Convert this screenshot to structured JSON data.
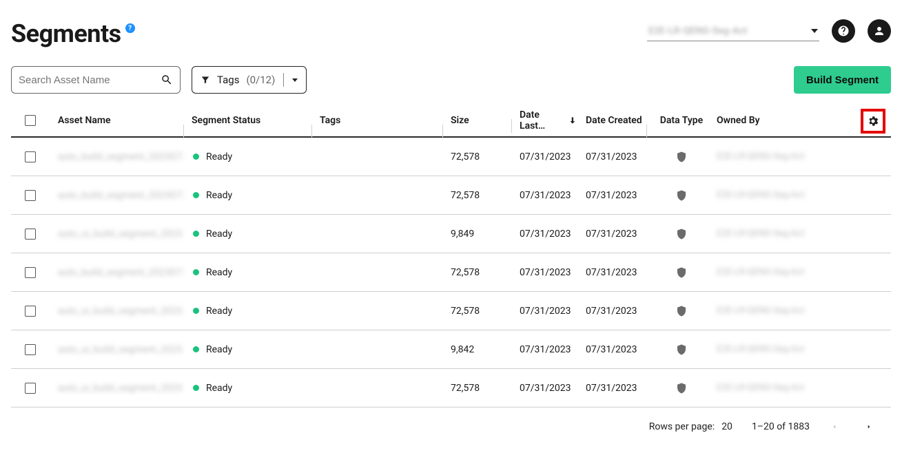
{
  "page_title": "Segments",
  "account_selector": {
    "label": "E2E-LR-QENG-Seg-Act"
  },
  "search": {
    "placeholder": "Search Asset Name"
  },
  "tags_filter": {
    "label": "Tags",
    "count": "(0/12)"
  },
  "build_button": "Build Segment",
  "columns": {
    "asset_name": "Asset Name",
    "segment_status": "Segment Status",
    "tags": "Tags",
    "size": "Size",
    "date_last": "Date Last…",
    "date_created": "Date Created",
    "data_type": "Data Type",
    "owned_by": "Owned By"
  },
  "rows": [
    {
      "name": "auto_build_segment_20230731…",
      "status": "Ready",
      "size": "72,578",
      "last": "07/31/2023",
      "created": "07/31/2023",
      "owner": "E2E-LR-QENG-Seg-Act"
    },
    {
      "name": "auto_build_segment_20230731…",
      "status": "Ready",
      "size": "72,578",
      "last": "07/31/2023",
      "created": "07/31/2023",
      "owner": "E2E-LR-QENG-Seg-Act"
    },
    {
      "name": "auto_ui_build_segment_2023…",
      "status": "Ready",
      "size": "9,849",
      "last": "07/31/2023",
      "created": "07/31/2023",
      "owner": "E2E-LR-QENG-Seg-Act"
    },
    {
      "name": "auto_build_segment_20230731…",
      "status": "Ready",
      "size": "72,578",
      "last": "07/31/2023",
      "created": "07/31/2023",
      "owner": "E2E-LR-QENG-Seg-Act"
    },
    {
      "name": "auto_ui_build_segment_2023…",
      "status": "Ready",
      "size": "72,578",
      "last": "07/31/2023",
      "created": "07/31/2023",
      "owner": "E2E-LR-QENG-Seg-Act"
    },
    {
      "name": "auto_ui_build_segment_2023…",
      "status": "Ready",
      "size": "9,842",
      "last": "07/31/2023",
      "created": "07/31/2023",
      "owner": "E2E-LR-QENG-Seg-Act"
    },
    {
      "name": "auto_ui_build_segment_2023…",
      "status": "Ready",
      "size": "72,578",
      "last": "07/31/2023",
      "created": "07/31/2023",
      "owner": "E2E-LR-QENG-Seg-Act"
    }
  ],
  "pagination": {
    "rows_per_page_label": "Rows per page:",
    "rows_per_page_value": "20",
    "range": "1–20 of 1883"
  },
  "colors": {
    "accent": "#2ecc8f",
    "status_ready": "#19c37d",
    "highlight_box": "#e30000",
    "info_badge": "#1e90ff"
  }
}
